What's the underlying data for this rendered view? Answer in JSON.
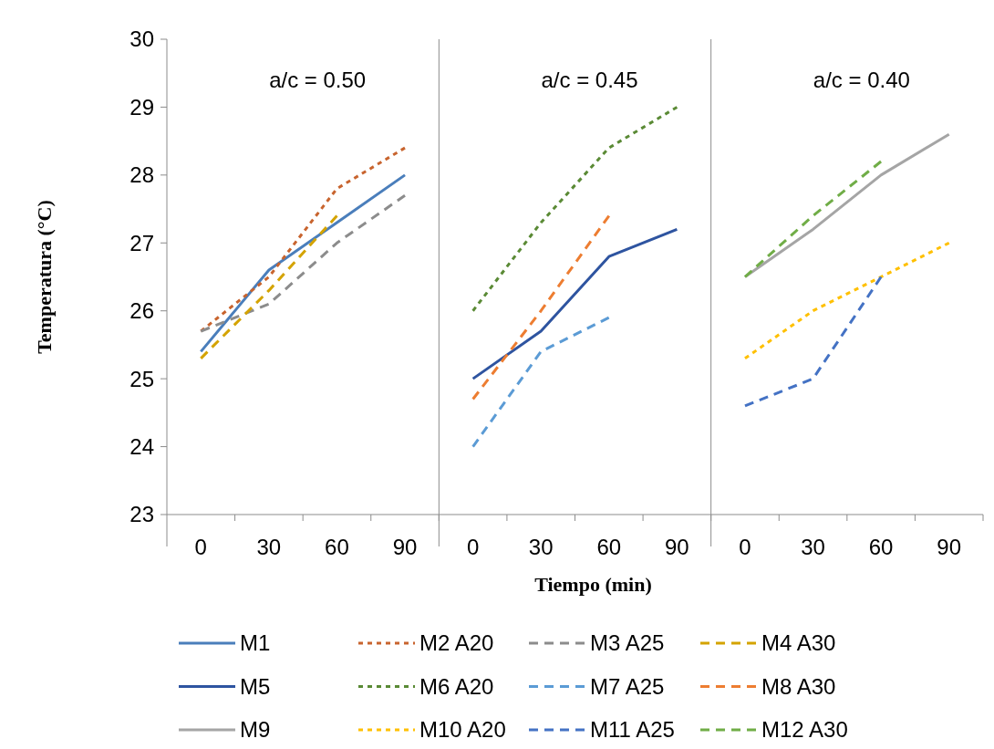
{
  "chart_data": [
    {
      "type": "line",
      "title": "a/c = 0.50",
      "ylabel": "Temperatura (°C)",
      "categories": [
        "0",
        "30",
        "60",
        "90"
      ],
      "ylim": [
        23,
        30
      ],
      "yticks": [
        23,
        24,
        25,
        26,
        27,
        28,
        29,
        30
      ],
      "legend": "bottom",
      "series": [
        {
          "name": "M1",
          "color": "#4a7ebb",
          "line_style": "solid",
          "values": [
            25.4,
            26.6,
            27.3,
            28.0
          ]
        },
        {
          "name": "M2 A20",
          "color": "#c8642e",
          "line_style": "dotted",
          "values": [
            25.7,
            26.5,
            27.8,
            28.4
          ]
        },
        {
          "name": "M3 A25",
          "color": "#8c8c8c",
          "line_style": "dashed",
          "values": [
            25.7,
            26.1,
            27.0,
            27.7
          ]
        },
        {
          "name": "M4 A30",
          "color": "#d4a300",
          "line_style": "dashed",
          "values": [
            25.3,
            26.3,
            27.4,
            null
          ]
        }
      ]
    },
    {
      "type": "line",
      "title": "a/c = 0.45",
      "xlabel": "Tiempo (min)",
      "categories": [
        "0",
        "30",
        "60",
        "90"
      ],
      "ylim": [
        23,
        30
      ],
      "yticks": [
        23,
        24,
        25,
        26,
        27,
        28,
        29,
        30
      ],
      "tick_labels": "x",
      "legend": "bottom",
      "series": [
        {
          "name": "M5",
          "color": "#2e54a0",
          "line_style": "solid",
          "values": [
            25.0,
            25.7,
            26.8,
            27.2
          ]
        },
        {
          "name": "M6 A20",
          "color": "#5a8a35",
          "line_style": "dotted",
          "values": [
            26.0,
            27.3,
            28.4,
            29.0
          ]
        },
        {
          "name": "M7 A25",
          "color": "#5b9bd5",
          "line_style": "dashed",
          "values": [
            24.0,
            25.4,
            25.9,
            null
          ]
        },
        {
          "name": "M8 A30",
          "color": "#ed7d31",
          "line_style": "dashed",
          "values": [
            24.7,
            26.0,
            27.4,
            null
          ]
        }
      ]
    },
    {
      "type": "line",
      "title": "a/c = 0.40",
      "categories": [
        "0",
        "30",
        "60",
        "90"
      ],
      "ylim": [
        23,
        30
      ],
      "yticks": [
        23,
        24,
        25,
        26,
        27,
        28,
        29,
        30
      ],
      "tick_labels": "x",
      "legend": "bottom",
      "series": [
        {
          "name": "M9",
          "color": "#a5a5a5",
          "line_style": "solid",
          "values": [
            26.5,
            27.2,
            28.0,
            28.6
          ]
        },
        {
          "name": "M10 A20",
          "color": "#ffc000",
          "line_style": "dotted",
          "values": [
            25.3,
            26.0,
            26.5,
            27.0
          ]
        },
        {
          "name": "M11 A25",
          "color": "#4472c4",
          "line_style": "dashed",
          "values": [
            24.6,
            25.0,
            26.5,
            null
          ]
        },
        {
          "name": "M12 A30",
          "color": "#70ad47",
          "line_style": "dashed",
          "values": [
            26.5,
            27.4,
            28.2,
            null
          ]
        }
      ]
    }
  ]
}
